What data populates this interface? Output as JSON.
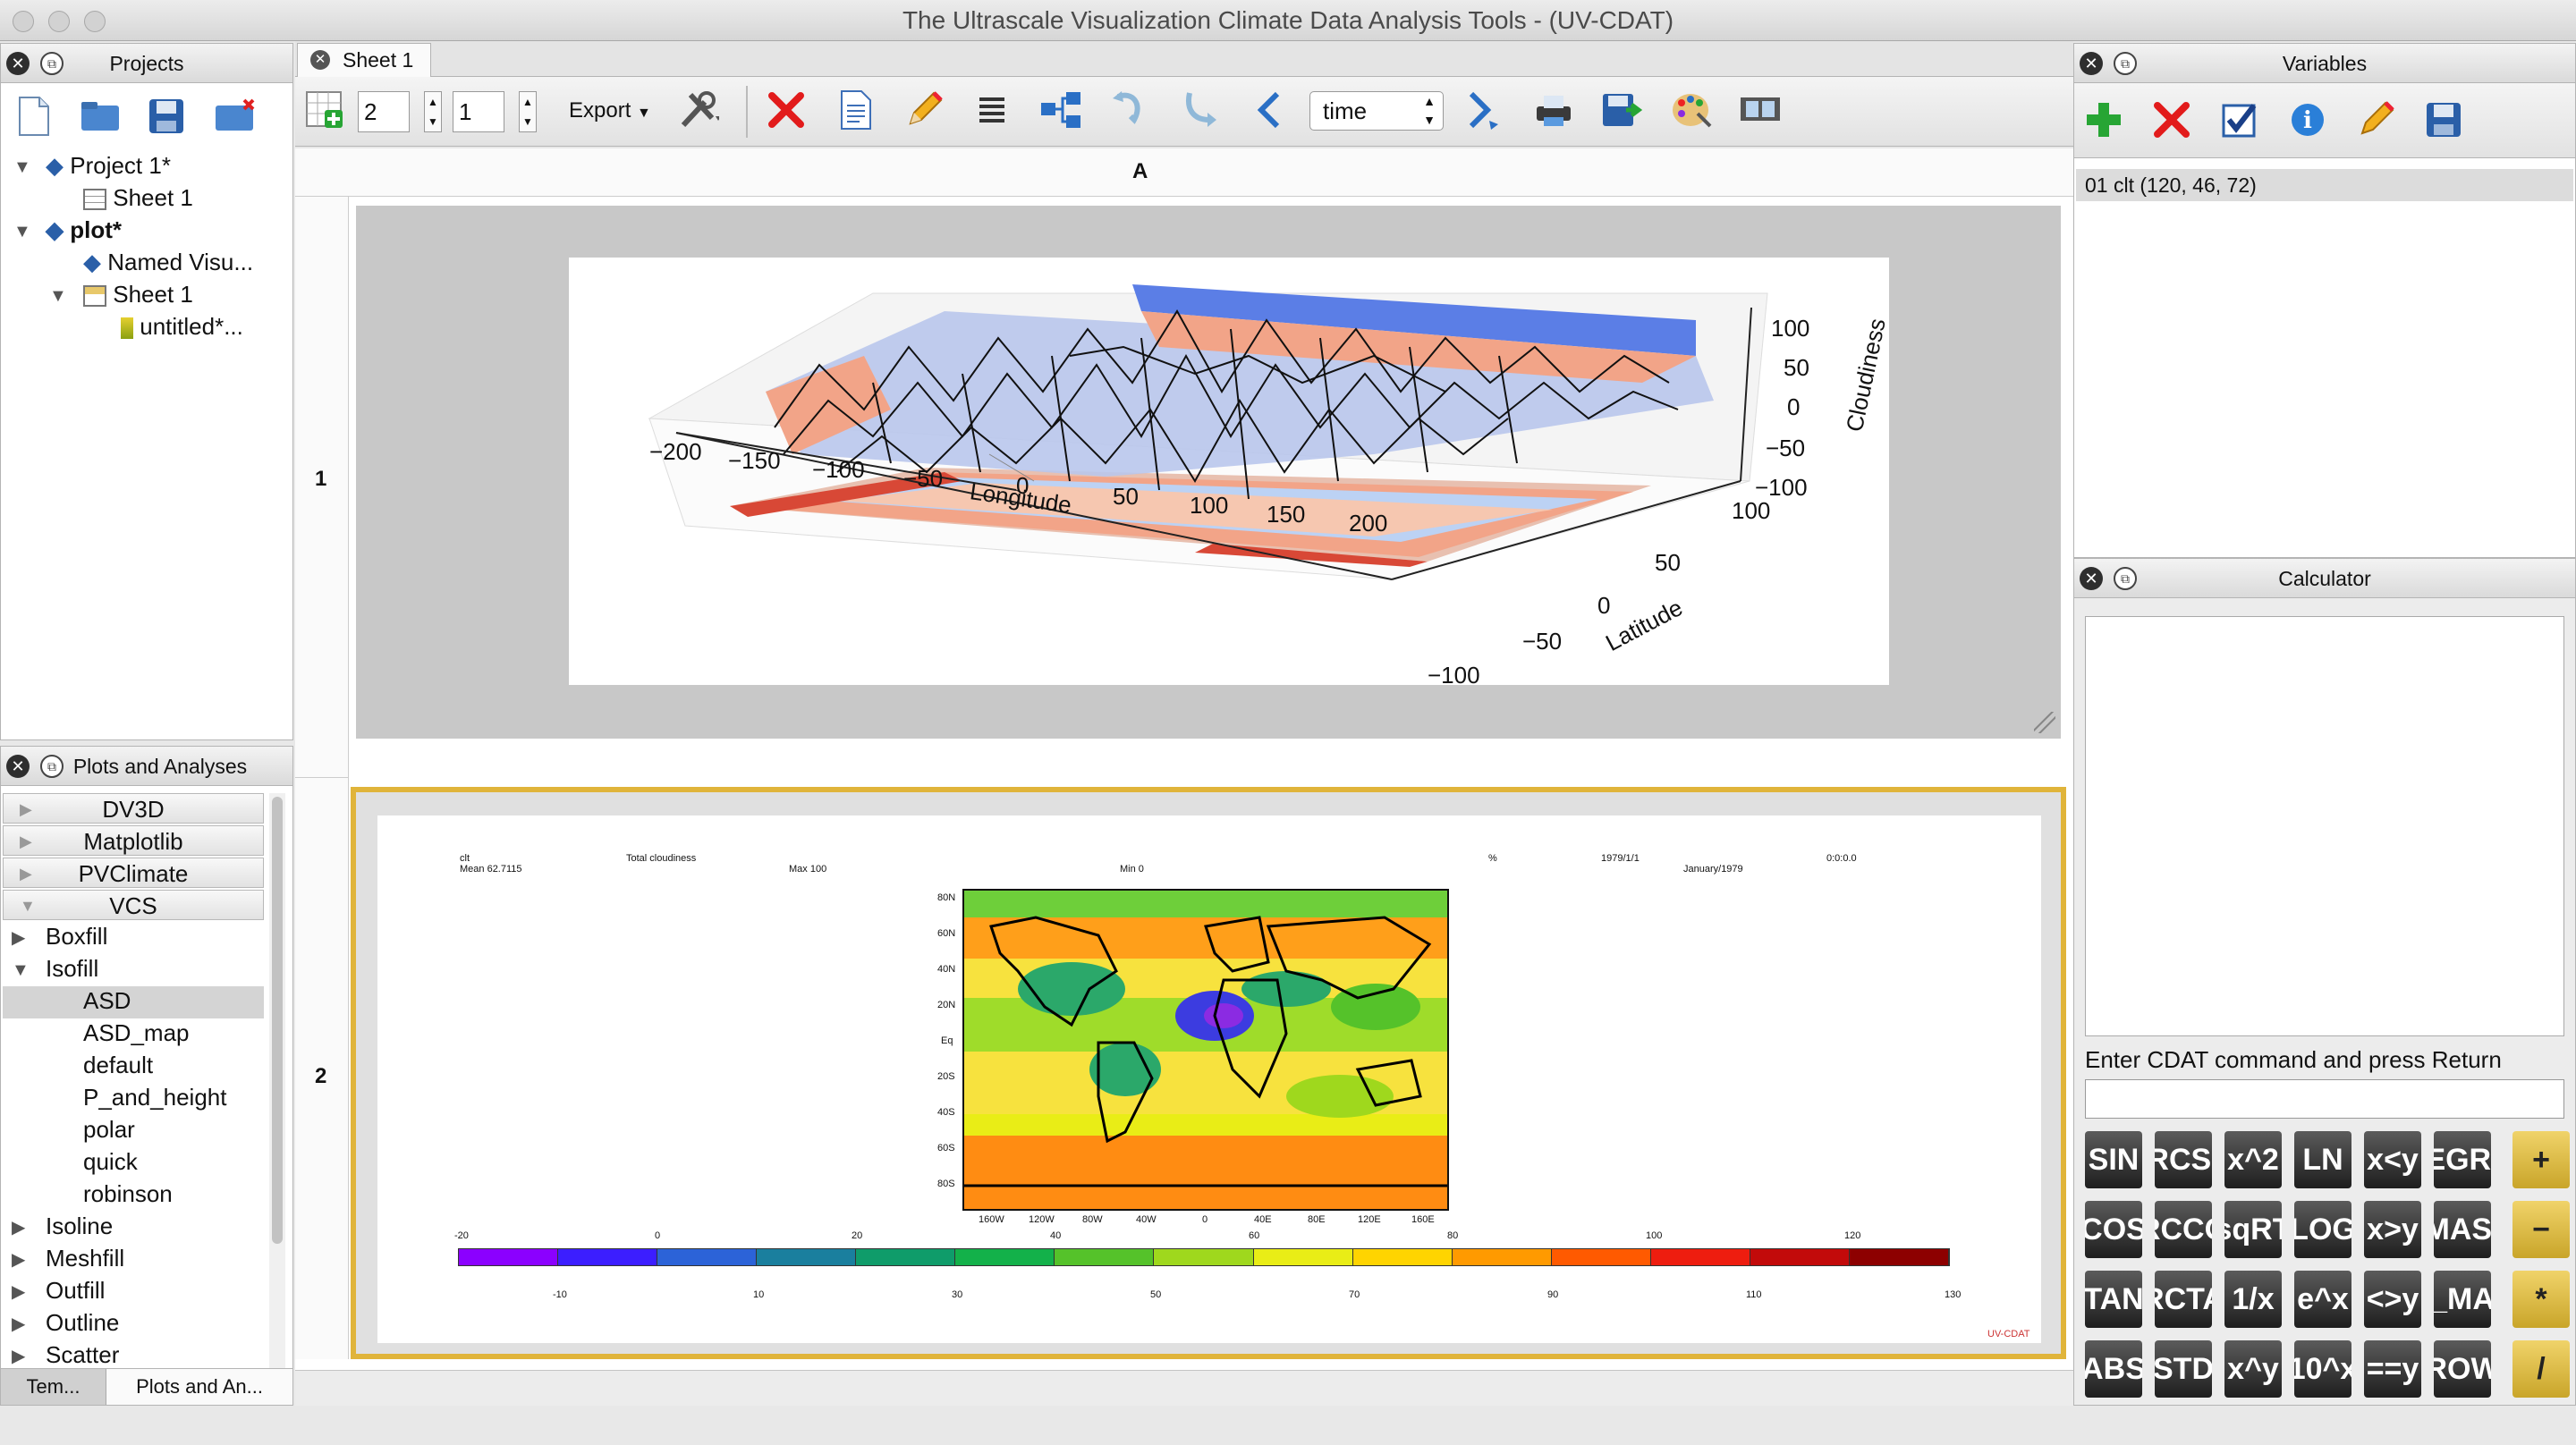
{
  "window": {
    "title": "The Ultrascale Visualization Climate Data Analysis Tools - (UV-CDAT)"
  },
  "projects": {
    "header": "Projects",
    "tree": [
      {
        "label": "Project 1*",
        "icon": "project-icon"
      },
      {
        "label": "Sheet 1",
        "icon": "sheet-icon"
      },
      {
        "label": "plot*",
        "icon": "project-icon"
      },
      {
        "label": "Named Visu...",
        "icon": "visualization-icon"
      },
      {
        "label": "Sheet 1",
        "icon": "sheet-icon"
      },
      {
        "label": "untitled*...",
        "icon": "cell-icon"
      }
    ]
  },
  "plots": {
    "header": "Plots and Analyses",
    "categories": [
      "DV3D",
      "Matplotlib",
      "PVClimate",
      "VCS"
    ],
    "items": [
      "Boxfill",
      "Isofill",
      "ASD",
      "ASD_map",
      "default",
      "P_and_height",
      "polar",
      "quick",
      "robinson",
      "Isoline",
      "Meshfill",
      "Outfill",
      "Outline",
      "Scatter"
    ],
    "selected": "ASD",
    "bottom_tabs": [
      "Tem...",
      "Plots and An..."
    ]
  },
  "sheet": {
    "tab": "Sheet 1",
    "rows_value": "2",
    "cols_value": "1",
    "export_label": "Export",
    "time_select": "time",
    "column_header": "A",
    "row_headers": [
      "1",
      "2"
    ]
  },
  "plot3d": {
    "x_ticks": [
      "−200",
      "−150",
      "−100",
      "−50",
      "0",
      "50",
      "100",
      "150",
      "200"
    ],
    "x_label": "Longitude",
    "y_ticks": [
      "100",
      "50",
      "0",
      "−50",
      "−100"
    ],
    "y_label": "Latitude",
    "z_ticks": [
      "100",
      "50",
      "0",
      "−50",
      "−100"
    ],
    "z_label": "Cloudiness"
  },
  "vcsplot": {
    "var_name": "clt",
    "mean": "Mean 62.7115",
    "long_name": "Total cloudiness",
    "max": "Max 100",
    "min": "Min 0",
    "units": "%",
    "date1": "1979/1/1",
    "date2": "January/1979",
    "time": "0:0:0.0",
    "lat_ticks": [
      "80N",
      "60N",
      "40N",
      "20N",
      "Eq",
      "20S",
      "40S",
      "60S",
      "80S"
    ],
    "lon_ticks": [
      "160W",
      "120W",
      "80W",
      "40W",
      "0",
      "40E",
      "80E",
      "120E",
      "160E"
    ],
    "colorbar_top": [
      "-20",
      "0",
      "20",
      "40",
      "60",
      "80",
      "100",
      "120"
    ],
    "colorbar_bottom": [
      "-10",
      "10",
      "30",
      "50",
      "70",
      "90",
      "110",
      "130"
    ],
    "colors": [
      "#8b00ff",
      "#3c1eff",
      "#2c63d8",
      "#1a7f9e",
      "#0f9c6a",
      "#13b14a",
      "#55c22a",
      "#9fd81d",
      "#e9ed16",
      "#ffd400",
      "#ff9a00",
      "#ff5a00",
      "#ee1d0f",
      "#c20a0a",
      "#8d0000"
    ],
    "logo": "UV-CDAT"
  },
  "variables": {
    "header": "Variables",
    "items": [
      "01 clt (120, 46, 72)"
    ]
  },
  "calculator": {
    "header": "Calculator",
    "prompt": "Enter CDAT command and press Return",
    "rows": [
      [
        "SIN",
        "RCSI",
        "x^2",
        "LN",
        "x<y",
        "EGRI",
        "+"
      ],
      [
        "COS",
        "RCCO",
        "sqRT",
        "LOG",
        "x>y",
        "MASI",
        "−"
      ],
      [
        "TAN",
        "RCTA",
        "1/x",
        "e^x",
        "<>y",
        "_MA",
        "*"
      ],
      [
        "ABS",
        "STD",
        "x^y",
        "10^x",
        "==y",
        "ROW",
        "/"
      ]
    ]
  }
}
